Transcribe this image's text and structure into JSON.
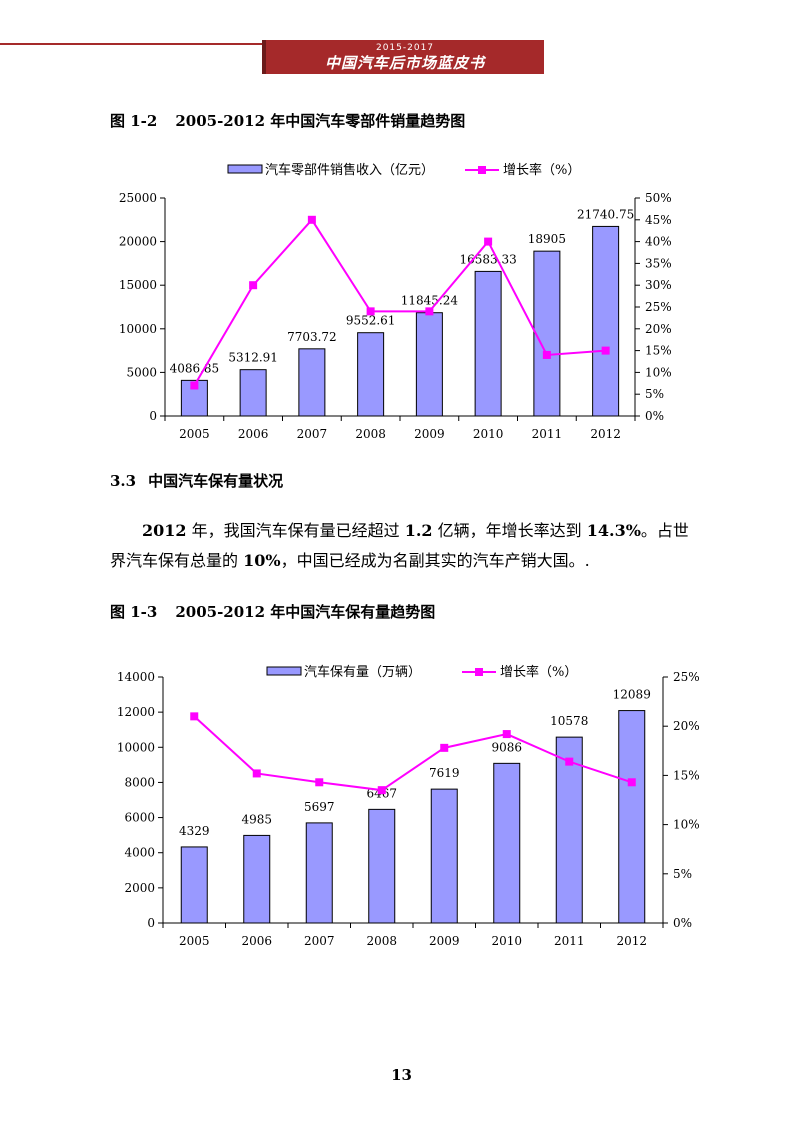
{
  "header": {
    "years": "2015-2017",
    "title": "中国汽车后市场蓝皮书"
  },
  "figure1": {
    "label": "图 1-2",
    "title": "2005-2012 年中国汽车零部件销量趋势图"
  },
  "figure2": {
    "label": "图 1-3",
    "title": "2005-2012 年中国汽车保有量趋势图"
  },
  "section": {
    "number": "3.3",
    "title": "中国汽车保有量状况"
  },
  "paragraph": {
    "p1": "2012",
    "p2": " 年，我国汽车保有量已经超过 ",
    "p3": "1.2",
    "p4": " 亿辆，年增长率达到 ",
    "p5": "14.3%",
    "p6": "。占世界汽车保有总量的 ",
    "p7": "10%",
    "p8": "，中国已经成为名副其实的汽车产销大国。."
  },
  "page_number": "13",
  "colors": {
    "bar_fill": "#9999ff",
    "line": "#ff00ff",
    "banner": "#a5292a"
  },
  "chart_data": [
    {
      "type": "bar",
      "categories": [
        "2005",
        "2006",
        "2007",
        "2008",
        "2009",
        "2010",
        "2011",
        "2012"
      ],
      "series": [
        {
          "name": "汽车零部件销售收入（亿元）",
          "kind": "bar",
          "axis": "left",
          "values": [
            4086.85,
            5312.91,
            7703.72,
            9552.61,
            11845.24,
            16583.33,
            18905,
            21740.75
          ],
          "labels": [
            "4086.85",
            "5312.91",
            "7703.72",
            "9552.61",
            "11845.24",
            "16583.33",
            "18905",
            "21740.75"
          ]
        },
        {
          "name": "增长率（%）",
          "kind": "line",
          "axis": "right",
          "values": [
            7,
            30,
            45,
            24,
            24,
            40,
            14,
            15
          ]
        }
      ],
      "yleft": {
        "min": 0,
        "max": 25000,
        "ticks": [
          "0",
          "5000",
          "10000",
          "15000",
          "20000",
          "25000"
        ]
      },
      "yright": {
        "min": 0,
        "max": 50,
        "ticks": [
          "0%",
          "5%",
          "10%",
          "15%",
          "20%",
          "25%",
          "30%",
          "35%",
          "40%",
          "45%",
          "50%"
        ]
      },
      "legend": "top"
    },
    {
      "type": "bar",
      "categories": [
        "2005",
        "2006",
        "2007",
        "2008",
        "2009",
        "2010",
        "2011",
        "2012"
      ],
      "series": [
        {
          "name": "汽车保有量（万辆）",
          "kind": "bar",
          "axis": "left",
          "values": [
            4329,
            4985,
            5697,
            6467,
            7619,
            9086,
            10578,
            12089
          ],
          "labels": [
            "4329",
            "4985",
            "5697",
            "6467",
            "7619",
            "9086",
            "10578",
            "12089"
          ]
        },
        {
          "name": "增长率（%）",
          "kind": "line",
          "axis": "right",
          "values": [
            21,
            15.2,
            14.3,
            13.5,
            17.8,
            19.2,
            16.4,
            14.3
          ]
        }
      ],
      "yleft": {
        "min": 0,
        "max": 14000,
        "ticks": [
          "0",
          "2000",
          "4000",
          "6000",
          "8000",
          "10000",
          "12000",
          "14000"
        ]
      },
      "yright": {
        "min": 0,
        "max": 25,
        "ticks": [
          "0%",
          "5%",
          "10%",
          "15%",
          "20%",
          "25%"
        ]
      },
      "legend": "top"
    }
  ]
}
